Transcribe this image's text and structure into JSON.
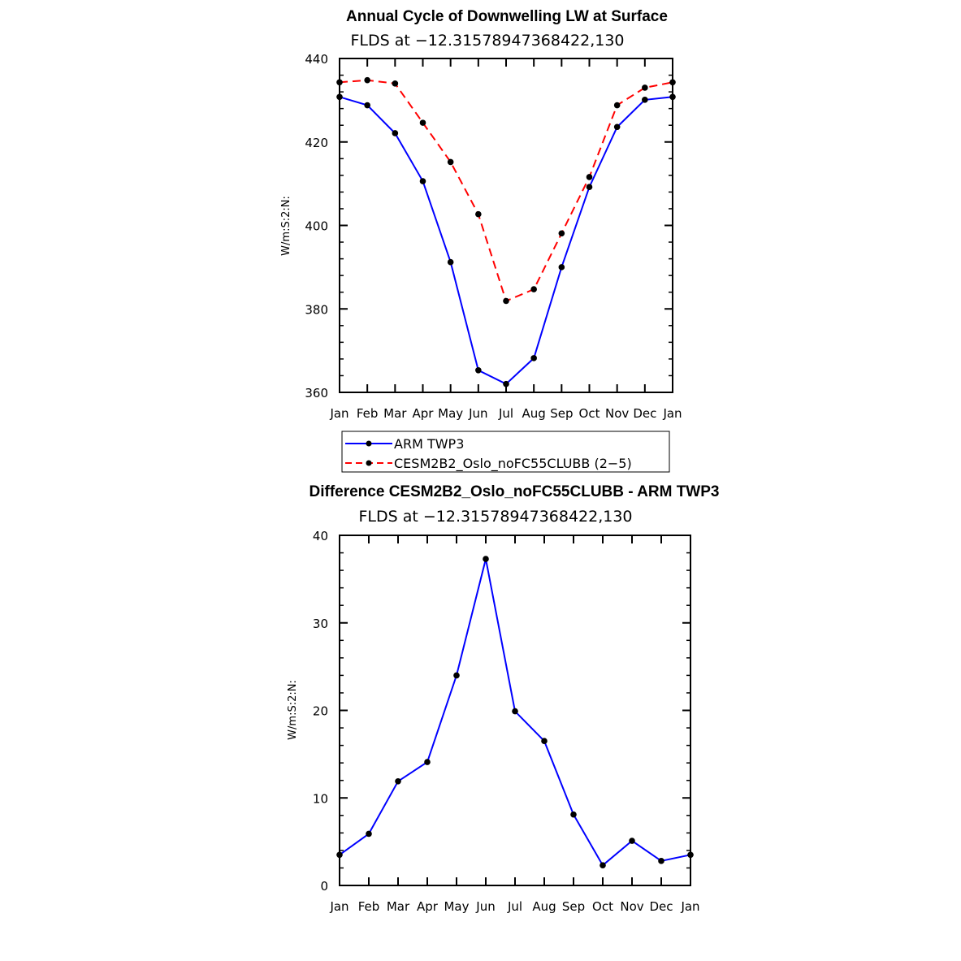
{
  "chart_data": [
    {
      "type": "line",
      "title": "Annual Cycle of Downwelling LW at Surface",
      "subtitle": "FLDS at −12.31578947368422,130",
      "xlabel": "",
      "ylabel": "W/m:S:2:N:",
      "categories": [
        "Jan",
        "Feb",
        "Mar",
        "Apr",
        "May",
        "Jun",
        "Jul",
        "Aug",
        "Sep",
        "Oct",
        "Nov",
        "Dec",
        "Jan"
      ],
      "ylim": [
        360,
        440
      ],
      "yticks": [
        "360",
        "380",
        "400",
        "420",
        "440"
      ],
      "series": [
        {
          "name": "ARM TWP3",
          "color": "#0000ff",
          "dash": "solid",
          "values": [
            430.8,
            428.8,
            422.1,
            410.6,
            391.2,
            365.3,
            362.0,
            368.2,
            390.0,
            409.2,
            423.6,
            430.1,
            430.8
          ]
        },
        {
          "name": "CESM2B2_Oslo_noFC55CLUBB (2−5)",
          "color": "#ff0000",
          "dash": "dashed",
          "values": [
            434.3,
            434.8,
            434.0,
            424.6,
            415.2,
            402.7,
            381.9,
            384.7,
            398.1,
            411.6,
            428.8,
            433.0,
            434.3
          ]
        }
      ],
      "legend": [
        "ARM TWP3",
        "CESM2B2_Oslo_noFC55CLUBB (2−5)"
      ]
    },
    {
      "type": "line",
      "title": "Difference CESM2B2_Oslo_noFC55CLUBB - ARM TWP3",
      "subtitle": "FLDS at −12.31578947368422,130",
      "xlabel": "",
      "ylabel": "W/m:S:2:N:",
      "categories": [
        "Jan",
        "Feb",
        "Mar",
        "Apr",
        "May",
        "Jun",
        "Jul",
        "Aug",
        "Sep",
        "Oct",
        "Nov",
        "Dec",
        "Jan"
      ],
      "ylim": [
        0,
        40
      ],
      "yticks": [
        "0",
        "10",
        "20",
        "30",
        "40"
      ],
      "series": [
        {
          "name": "Difference",
          "color": "#0000ff",
          "dash": "solid",
          "values": [
            3.5,
            5.9,
            11.9,
            14.1,
            24.0,
            37.3,
            19.9,
            16.5,
            8.1,
            2.3,
            5.1,
            2.8,
            3.5
          ]
        }
      ]
    }
  ]
}
